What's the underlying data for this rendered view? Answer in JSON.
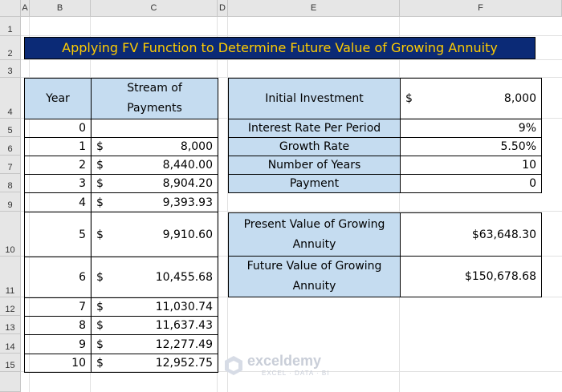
{
  "columns": [
    "A",
    "B",
    "C",
    "D",
    "E",
    "F"
  ],
  "rows": [
    "1",
    "2",
    "3",
    "4",
    "5",
    "6",
    "7",
    "8",
    "9",
    "10",
    "11",
    "12",
    "13",
    "14",
    "15"
  ],
  "title": "Applying FV Function to Determine Future Value of Growing Annuity",
  "left_table": {
    "header_year": "Year",
    "header_payments": "Stream of Payments",
    "currency": "$",
    "rows": [
      {
        "year": "0",
        "amount": ""
      },
      {
        "year": "1",
        "amount": "8,000"
      },
      {
        "year": "2",
        "amount": "8,440.00"
      },
      {
        "year": "3",
        "amount": "8,904.20"
      },
      {
        "year": "4",
        "amount": "9,393.93"
      },
      {
        "year": "5",
        "amount": "9,910.60"
      },
      {
        "year": "6",
        "amount": "10,455.68"
      },
      {
        "year": "7",
        "amount": "11,030.74"
      },
      {
        "year": "8",
        "amount": "11,637.43"
      },
      {
        "year": "9",
        "amount": "12,277.49"
      },
      {
        "year": "10",
        "amount": "12,952.75"
      }
    ]
  },
  "right_table": {
    "initial_investment_label": "Initial Investment",
    "initial_investment_currency": "$",
    "initial_investment_value": "8,000",
    "interest_rate_label": "Interest Rate Per Period",
    "interest_rate_value": "9%",
    "growth_rate_label": "Growth Rate",
    "growth_rate_value": "5.50%",
    "years_label": "Number of Years",
    "years_value": "10",
    "payment_label": "Payment",
    "payment_value": "0"
  },
  "results": {
    "pv_label": "Present Value of Growing Annuity",
    "pv_value": "$63,648.30",
    "fv_label": "Future Value of Growing Annuity",
    "fv_value": "$150,678.68"
  },
  "watermark": {
    "brand": "exceldemy",
    "tagline": "EXCEL · DATA · BI"
  }
}
